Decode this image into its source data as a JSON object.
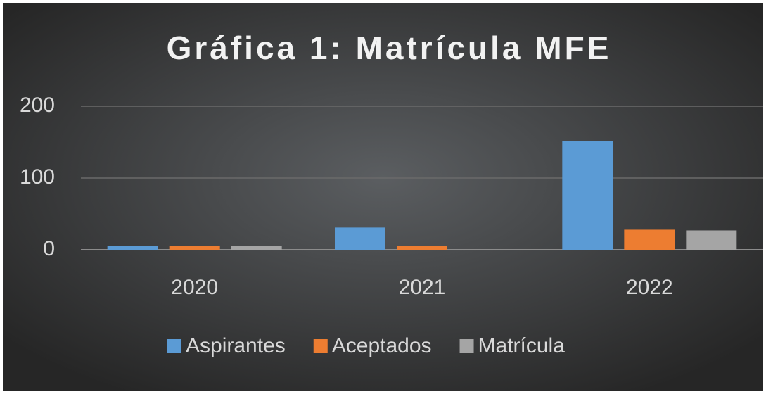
{
  "chart_data": {
    "type": "bar",
    "title": "Gráfica 1:  Matrícula MFE",
    "categories": [
      "2020",
      "2021",
      "2022"
    ],
    "series": [
      {
        "name": "Aspirantes",
        "color": "#5b9bd5",
        "values": [
          5,
          31,
          151
        ]
      },
      {
        "name": "Aceptados",
        "color": "#ed7d31",
        "values": [
          5,
          5,
          28
        ]
      },
      {
        "name": "Matrícula",
        "color": "#a5a5a5",
        "values": [
          5,
          0,
          27
        ]
      }
    ],
    "ylim": [
      0,
      200
    ],
    "yticks": [
      0,
      100,
      200
    ],
    "grid": true,
    "legend": "bottom"
  }
}
